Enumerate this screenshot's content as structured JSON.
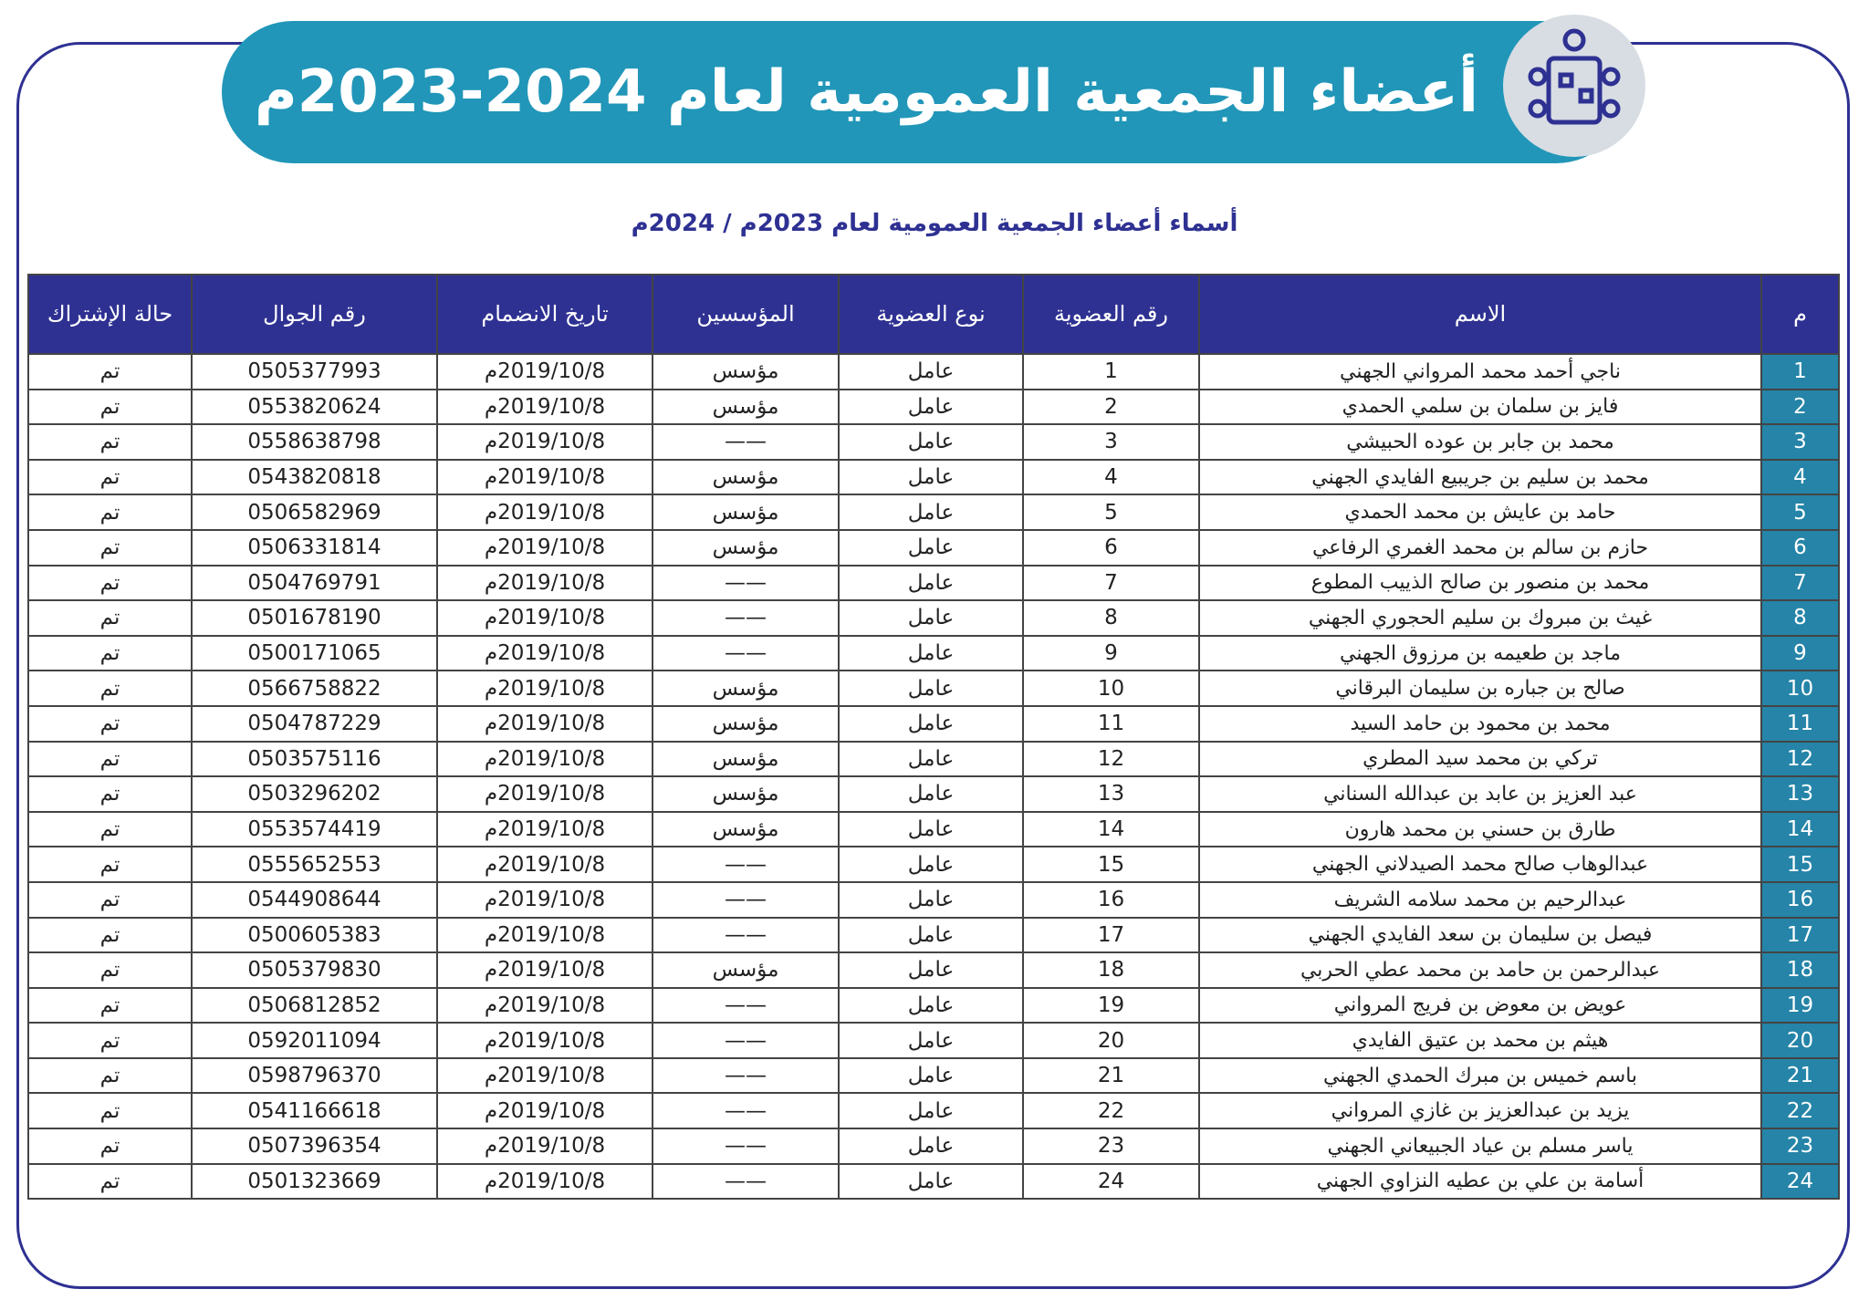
{
  "header": {
    "title": "أعضاء الجمعية العمومية لعام 2024-2023م"
  },
  "subtitle": "أسماء أعضاء الجمعية العمومية لعام 2023م / 2024م",
  "table": {
    "columns": [
      "م",
      "الاسم",
      "رقم العضوية",
      "نوع العضوية",
      "المؤسسين",
      "تاريخ الانضمام",
      "رقم الجوال",
      "حالة الإشتراك"
    ],
    "rows": [
      [
        "1",
        "ناجي أحمد محمد المرواني الجهني",
        "1",
        "عامل",
        "مؤسس",
        "2019/10/8م",
        "0505377993",
        "تم"
      ],
      [
        "2",
        "فايز بن سلمان بن سلمي الحمدي",
        "2",
        "عامل",
        "مؤسس",
        "2019/10/8م",
        "0553820624",
        "تم"
      ],
      [
        "3",
        "محمد بن جابر بن عوده الحبيشي",
        "3",
        "عامل",
        "——",
        "2019/10/8م",
        "0558638798",
        "تم"
      ],
      [
        "4",
        "محمد بن سليم بن جريبيع الفايدي الجهني",
        "4",
        "عامل",
        "مؤسس",
        "2019/10/8م",
        "0543820818",
        "تم"
      ],
      [
        "5",
        "حامد بن عايش بن محمد الحمدي",
        "5",
        "عامل",
        "مؤسس",
        "2019/10/8م",
        "0506582969",
        "تم"
      ],
      [
        "6",
        "حازم بن سالم بن محمد الغمري الرفاعي",
        "6",
        "عامل",
        "مؤسس",
        "2019/10/8م",
        "0506331814",
        "تم"
      ],
      [
        "7",
        "محمد بن منصور بن صالح الذييب المطوع",
        "7",
        "عامل",
        "——",
        "2019/10/8م",
        "0504769791",
        "تم"
      ],
      [
        "8",
        "غيث بن مبروك بن سليم الحجوري الجهني",
        "8",
        "عامل",
        "——",
        "2019/10/8م",
        "0501678190",
        "تم"
      ],
      [
        "9",
        "ماجد بن طعيمه بن مرزوق الجهني",
        "9",
        "عامل",
        "——",
        "2019/10/8م",
        "0500171065",
        "تم"
      ],
      [
        "10",
        "صالح بن جباره بن سليمان البرقاني",
        "10",
        "عامل",
        "مؤسس",
        "2019/10/8م",
        "0566758822",
        "تم"
      ],
      [
        "11",
        "محمد بن محمود بن حامد السيد",
        "11",
        "عامل",
        "مؤسس",
        "2019/10/8م",
        "0504787229",
        "تم"
      ],
      [
        "12",
        "تركي بن محمد سيد المطري",
        "12",
        "عامل",
        "مؤسس",
        "2019/10/8م",
        "0503575116",
        "تم"
      ],
      [
        "13",
        "عبد العزيز بن عابد بن عبدالله السناني",
        "13",
        "عامل",
        "مؤسس",
        "2019/10/8م",
        "0503296202",
        "تم"
      ],
      [
        "14",
        "طارق بن حسني بن محمد هارون",
        "14",
        "عامل",
        "مؤسس",
        "2019/10/8م",
        "0553574419",
        "تم"
      ],
      [
        "15",
        "عبدالوهاب صالح محمد الصيدلاني الجهني",
        "15",
        "عامل",
        "——",
        "2019/10/8م",
        "0555652553",
        "تم"
      ],
      [
        "16",
        "عبدالرحيم بن محمد سلامه الشريف",
        "16",
        "عامل",
        "——",
        "2019/10/8م",
        "0544908644",
        "تم"
      ],
      [
        "17",
        "فيصل بن سليمان بن سعد الفايدي الجهني",
        "17",
        "عامل",
        "——",
        "2019/10/8م",
        "0500605383",
        "تم"
      ],
      [
        "18",
        "عبدالرحمن بن حامد بن محمد عطي الحربي",
        "18",
        "عامل",
        "مؤسس",
        "2019/10/8م",
        "0505379830",
        "تم"
      ],
      [
        "19",
        "عويض بن معوض بن فريج المرواني",
        "19",
        "عامل",
        "——",
        "2019/10/8م",
        "0506812852",
        "تم"
      ],
      [
        "20",
        "هيثم بن محمد بن عتيق الفايدي",
        "20",
        "عامل",
        "——",
        "2019/10/8م",
        "0592011094",
        "تم"
      ],
      [
        "21",
        "باسم خميس بن مبرك الحمدي الجهني",
        "21",
        "عامل",
        "——",
        "2019/10/8م",
        "0598796370",
        "تم"
      ],
      [
        "22",
        "يزيد بن عبدالعزيز بن غازي المرواني",
        "22",
        "عامل",
        "——",
        "2019/10/8م",
        "0541166618",
        "تم"
      ],
      [
        "23",
        "ياسر مسلم بن عياد الجبيعاني الجهني",
        "23",
        "عامل",
        "——",
        "2019/10/8م",
        "0507396354",
        "تم"
      ],
      [
        "24",
        "أسامة بن علي بن عطيه النزاوي الجهني",
        "24",
        "عامل",
        "——",
        "2019/10/8م",
        "0501323669",
        "تم"
      ]
    ]
  }
}
